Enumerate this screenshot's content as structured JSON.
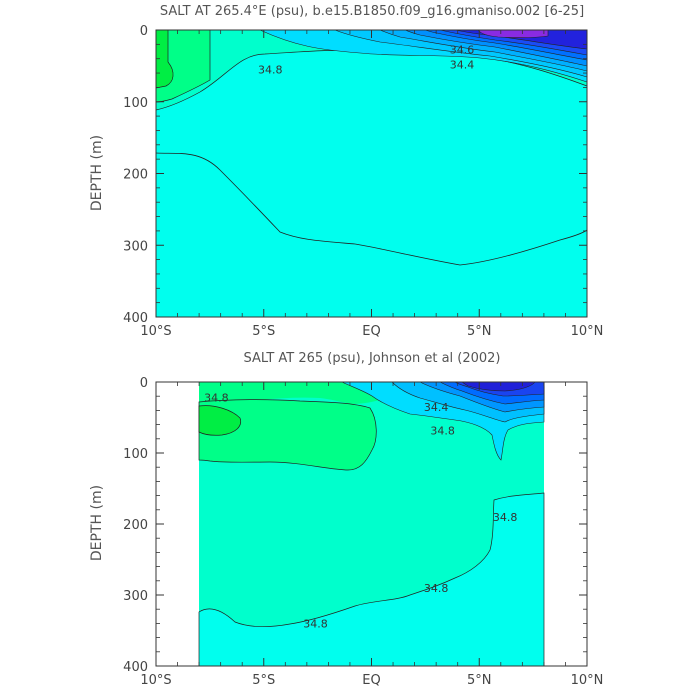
{
  "chart_data": [
    {
      "type": "contour",
      "title": "SALT AT 265.4°E (psu), b.e15.B1850.f09_g16.gmaniso.002 [6-25]",
      "ylabel": "DEPTH (m)",
      "xlim": [
        -10,
        10
      ],
      "ylim": [
        400,
        0
      ],
      "x_ticks": [
        -10,
        -5,
        0,
        5,
        10
      ],
      "x_tick_labels": [
        "10°S",
        "5°S",
        "EQ",
        "5°N",
        "10°N"
      ],
      "y_ticks": [
        0,
        100,
        200,
        300,
        400
      ],
      "y_tick_labels": [
        "0",
        "100",
        "200",
        "300",
        "400"
      ],
      "data_extent": {
        "x": [
          -10,
          10
        ],
        "y": [
          0,
          400
        ]
      },
      "colors": {
        "deep": "#00ffee",
        "mid": "#00ffcc",
        "high": "#00ff88",
        "max": "#00ee44",
        "fresh": [
          "#00ddff",
          "#00b8ff",
          "#0090ff",
          "#0066ff",
          "#1a40f0",
          "#2020d8",
          "#5a20d8",
          "#8a2be2"
        ]
      },
      "contour_labels": [
        {
          "text": "34.8",
          "x": -4.7,
          "y": 55
        },
        {
          "text": "34.6",
          "x": 4.2,
          "y": 27
        },
        {
          "text": "34.4",
          "x": 4.2,
          "y": 48
        }
      ]
    },
    {
      "type": "contour",
      "title": "SALT AT 265 (psu), Johnson et al (2002)",
      "ylabel": "DEPTH (m)",
      "xlim": [
        -10,
        10
      ],
      "ylim": [
        400,
        0
      ],
      "x_ticks": [
        -10,
        -5,
        0,
        5,
        10
      ],
      "x_tick_labels": [
        "10°S",
        "5°S",
        "EQ",
        "5°N",
        "10°N"
      ],
      "y_ticks": [
        0,
        100,
        200,
        300,
        400
      ],
      "y_tick_labels": [
        "0",
        "100",
        "200",
        "300",
        "400"
      ],
      "data_extent": {
        "x": [
          -8,
          8
        ],
        "y": [
          5,
          400
        ]
      },
      "colors": {
        "deep": "#00ffcc",
        "high": "#00ff88",
        "max": "#00ee44",
        "fresh": [
          "#00ddff",
          "#00b8ff",
          "#0090ff",
          "#0066ff",
          "#1a40f0",
          "#2020d8"
        ]
      },
      "contour_labels": [
        {
          "text": "34.8",
          "x": -7.2,
          "y": 22
        },
        {
          "text": "34.4",
          "x": 3.0,
          "y": 35
        },
        {
          "text": "34.8",
          "x": 3.3,
          "y": 68
        },
        {
          "text": "34.8",
          "x": 6.2,
          "y": 190
        },
        {
          "text": "34.8",
          "x": 3.0,
          "y": 290
        },
        {
          "text": "34.8",
          "x": -2.6,
          "y": 340
        }
      ]
    }
  ]
}
